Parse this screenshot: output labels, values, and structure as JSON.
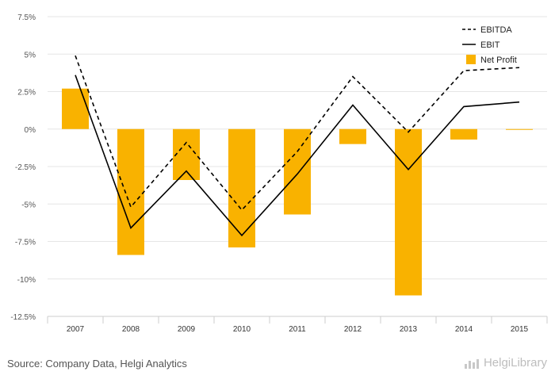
{
  "chart_data": {
    "type": "bar",
    "categories": [
      "2007",
      "2008",
      "2009",
      "2010",
      "2011",
      "2012",
      "2013",
      "2014",
      "2015"
    ],
    "series": [
      {
        "name": "EBITDA",
        "type": "line",
        "style": "dashed",
        "color": "#000000",
        "values": [
          4.9,
          -5.2,
          -0.9,
          -5.4,
          -1.5,
          3.5,
          -0.2,
          3.9,
          4.1
        ]
      },
      {
        "name": "EBIT",
        "type": "line",
        "style": "solid",
        "color": "#000000",
        "values": [
          3.6,
          -6.6,
          -2.8,
          -7.1,
          -3.0,
          1.6,
          -2.7,
          1.5,
          1.8
        ]
      },
      {
        "name": "Net Profit",
        "type": "bar",
        "color": "#f9b200",
        "values": [
          2.7,
          -8.4,
          -3.4,
          -7.9,
          -5.7,
          -1.0,
          -11.1,
          -0.7,
          -0.05
        ]
      }
    ],
    "ylim": [
      -12.5,
      7.5
    ],
    "yticks": [
      "7.5%",
      "5%",
      "2.5%",
      "0%",
      "-2.5%",
      "-5%",
      "-7.5%",
      "-10%",
      "-12.5%"
    ],
    "grid": true,
    "legend_position": "top-right",
    "xlabel": "",
    "ylabel": ""
  },
  "footer": {
    "source": "Source: Company Data, Helgi Analytics",
    "brand": "HelgiLibrary"
  }
}
